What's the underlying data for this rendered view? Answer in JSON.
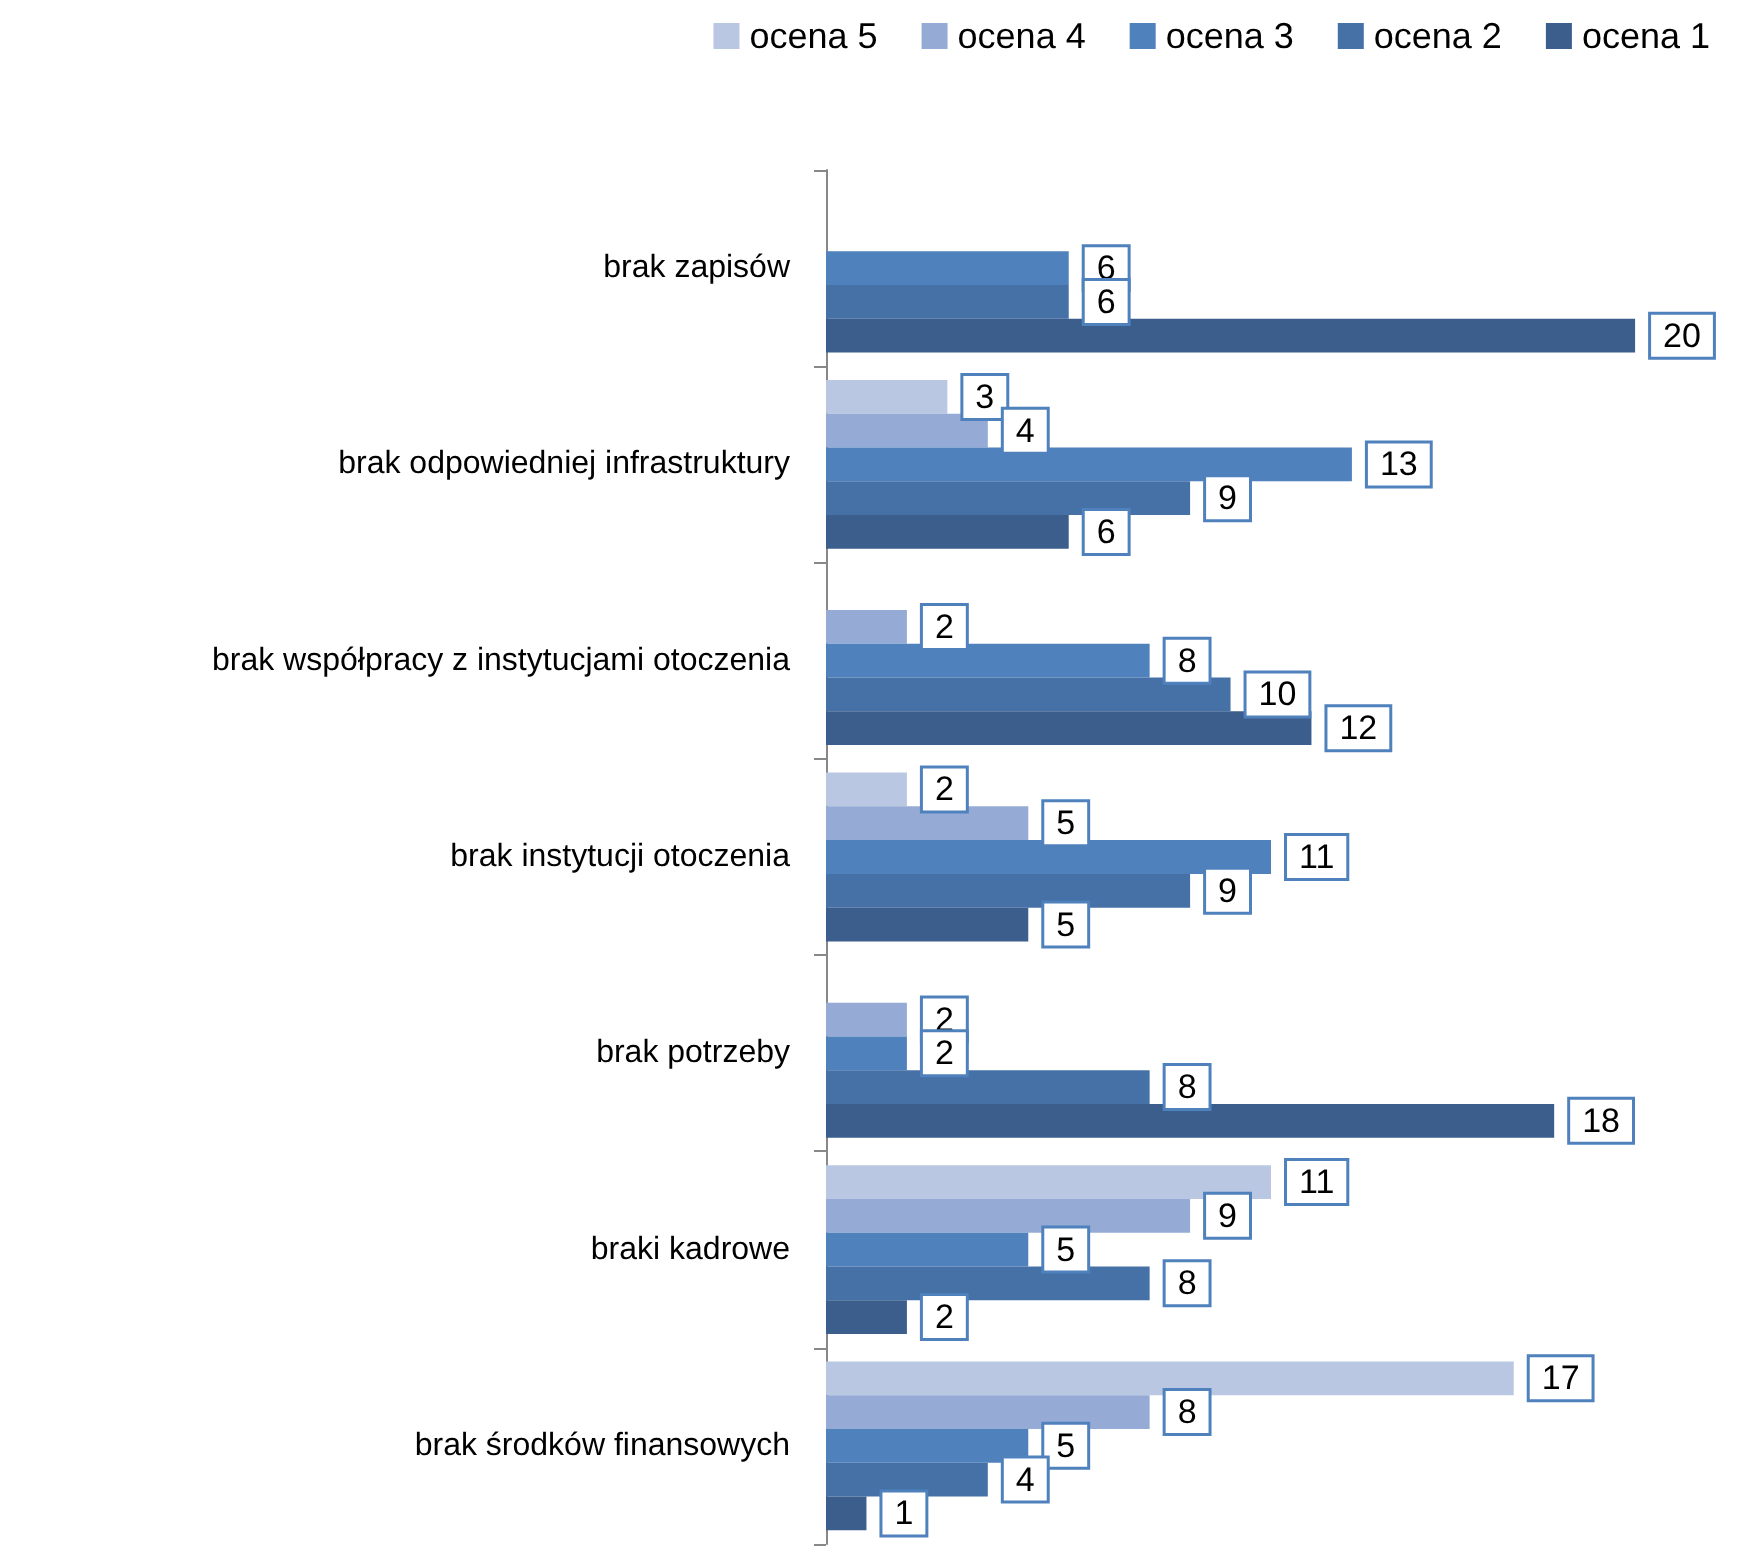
{
  "chart_data": {
    "type": "bar",
    "orientation": "horizontal",
    "categories": [
      "brak zapisów",
      "brak odpowiedniej infrastruktury",
      "brak współpracy z instytucjami otoczenia",
      "brak instytucji otoczenia",
      "brak potrzeby",
      "braki kadrowe",
      "brak środków finansowych"
    ],
    "series": [
      {
        "name": "ocena 5",
        "color": "#b9c7e3",
        "values": [
          null,
          3,
          null,
          2,
          null,
          11,
          17
        ]
      },
      {
        "name": "ocena 4",
        "color": "#95abd6",
        "values": [
          null,
          4,
          2,
          5,
          2,
          9,
          8
        ]
      },
      {
        "name": "ocena 3",
        "color": "#4f81bd",
        "values": [
          6,
          13,
          8,
          11,
          2,
          5,
          5
        ]
      },
      {
        "name": "ocena 2",
        "color": "#4571a7",
        "values": [
          6,
          9,
          10,
          9,
          8,
          8,
          4
        ]
      },
      {
        "name": "ocena 1",
        "color": "#3b5e8d",
        "values": [
          20,
          6,
          12,
          5,
          18,
          2,
          1
        ]
      }
    ],
    "xlim": [
      0,
      22
    ],
    "tick_labels": "y",
    "data_labels": true,
    "legend": "top"
  }
}
